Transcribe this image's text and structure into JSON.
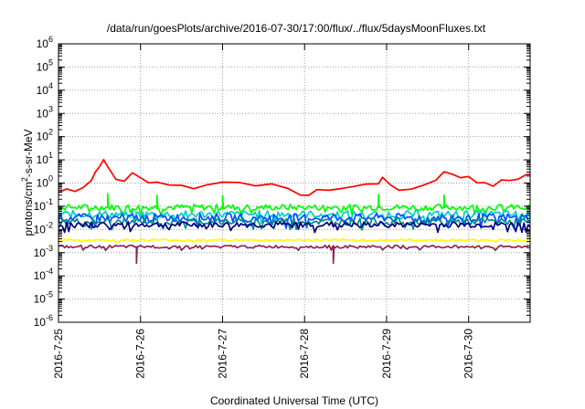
{
  "chart_data": {
    "type": "line",
    "title": "/data/run/goesPlots/archive/2016-07-30/17:00/flux/../flux/5daysMoonFluxes.txt",
    "xlabel": "Coordinated Universal Time (UTC)",
    "ylabel": "protons/cm²-s-sr-MeV",
    "ylabel_parts": {
      "prefix": "protons/cm",
      "superscript": "2",
      "suffix": "-s-sr-MeV"
    },
    "x_tick_labels": [
      "2016-7-25",
      "2016-7-26",
      "2016-7-27",
      "2016-7-28",
      "2016-7-29",
      "2016-7-30"
    ],
    "y_scale": "log",
    "y_tick_exponents": [
      -6,
      -5,
      -4,
      -3,
      -2,
      -1,
      0,
      1,
      2,
      3,
      4,
      5,
      6
    ],
    "y_tick_base": "10",
    "ylim": [
      1e-06,
      1000000.0
    ],
    "xlim_days": [
      0,
      5.75
    ],
    "grid": true,
    "legend": "none",
    "series": [
      {
        "color": "#ff0000",
        "points": [
          [
            0,
            0.4
          ],
          [
            0.1,
            0.55
          ],
          [
            0.2,
            0.5
          ],
          [
            0.3,
            0.7
          ],
          [
            0.4,
            1.3
          ],
          [
            0.45,
            3
          ],
          [
            0.5,
            6
          ],
          [
            0.55,
            9
          ],
          [
            0.6,
            5
          ],
          [
            0.7,
            1.5
          ],
          [
            0.8,
            1.3
          ],
          [
            0.9,
            2.5
          ],
          [
            1.0,
            1.6
          ],
          [
            1.1,
            1.2
          ],
          [
            1.2,
            1.1
          ],
          [
            1.35,
            0.9
          ],
          [
            1.5,
            0.75
          ],
          [
            1.65,
            0.65
          ],
          [
            1.8,
            0.8
          ],
          [
            2.0,
            1.1
          ],
          [
            2.2,
            1.2
          ],
          [
            2.4,
            0.9
          ],
          [
            2.6,
            0.8
          ],
          [
            2.8,
            0.5
          ],
          [
            2.95,
            0.35
          ],
          [
            3.05,
            0.3
          ],
          [
            3.15,
            0.45
          ],
          [
            3.3,
            0.55
          ],
          [
            3.45,
            0.6
          ],
          [
            3.6,
            0.7
          ],
          [
            3.75,
            0.85
          ],
          [
            3.9,
            1.0
          ],
          [
            3.95,
            2.0
          ],
          [
            4.05,
            0.7
          ],
          [
            4.15,
            0.5
          ],
          [
            4.3,
            0.6
          ],
          [
            4.45,
            0.8
          ],
          [
            4.6,
            1.4
          ],
          [
            4.7,
            3.5
          ],
          [
            4.8,
            2.2
          ],
          [
            4.9,
            1.8
          ],
          [
            5.0,
            2.0
          ],
          [
            5.1,
            1.2
          ],
          [
            5.2,
            0.9
          ],
          [
            5.3,
            0.8
          ],
          [
            5.4,
            1.2
          ],
          [
            5.5,
            1.3
          ],
          [
            5.6,
            1.6
          ],
          [
            5.7,
            2.2
          ],
          [
            5.75,
            2.5
          ]
        ]
      },
      {
        "color": "#00ff00",
        "level": 0.09,
        "amp": 1.35,
        "spikes": [
          [
            0.6,
            0.35
          ],
          [
            1.2,
            0.3
          ],
          [
            2.0,
            0.28
          ],
          [
            3.9,
            0.32
          ],
          [
            4.7,
            0.3
          ]
        ]
      },
      {
        "color": "#00cccc",
        "level": 0.045,
        "amp": 1.45,
        "spikes": []
      },
      {
        "color": "#0050ff",
        "level": 0.032,
        "amp": 1.5,
        "spikes": []
      },
      {
        "color": "#008c8c",
        "level": 0.022,
        "amp": 1.4,
        "spikes": []
      },
      {
        "color": "#000080",
        "level": 0.016,
        "amp": 1.35,
        "spikes": []
      },
      {
        "color": "#ffff00",
        "level": 0.0035,
        "amp": 1.1,
        "spikes": []
      },
      {
        "color": "#8b2252",
        "level": 0.0018,
        "amp": 1.15,
        "spikes": [
          [
            0.95,
            0.00035
          ],
          [
            3.35,
            0.00035
          ]
        ]
      }
    ]
  }
}
